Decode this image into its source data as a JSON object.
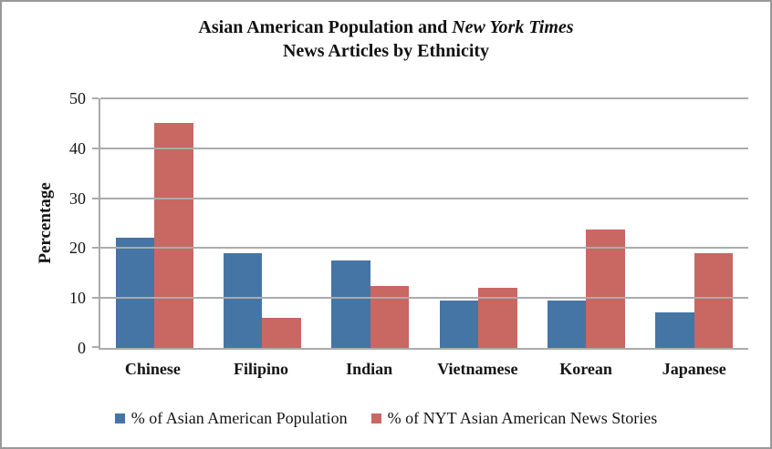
{
  "title": {
    "line1_regular": "Asian American Population and ",
    "line1_italic": "New York Times",
    "line2": "News Articles by Ethnicity"
  },
  "chart_data": {
    "type": "bar",
    "title": "Asian American Population and New York Times News Articles by Ethnicity",
    "categories": [
      "Chinese",
      "Filipino",
      "Indian",
      "Vietnamese",
      "Korean",
      "Japanese"
    ],
    "series": [
      {
        "name": "% of Asian American Population",
        "color": "#4575A5",
        "values": [
          22,
          19,
          17.5,
          9.5,
          9.5,
          7.2
        ]
      },
      {
        "name": "% of NYT Asian American News Stories",
        "color": "#C96762",
        "values": [
          45,
          6,
          12.5,
          12,
          23.8,
          19
        ]
      }
    ],
    "xlabel": "",
    "ylabel": "Percentage",
    "ylim": [
      0,
      50
    ],
    "yticks": [
      0,
      10,
      20,
      30,
      40,
      50
    ],
    "grid": true,
    "legend_position": "bottom"
  },
  "colors": {
    "gridline": "#ABABAB",
    "axis": "#ABABAB",
    "frame_border": "#999999",
    "series_blue": "#4575A5",
    "series_red": "#C96762"
  }
}
